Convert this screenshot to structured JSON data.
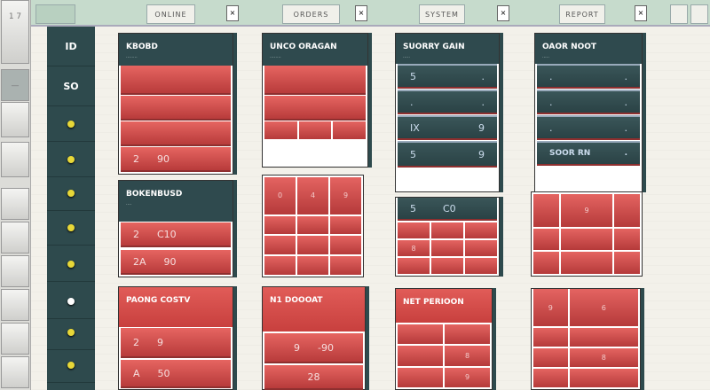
{
  "topbar": {
    "tabs": [
      "ONLINE",
      "ORDERS",
      "SYSTEM",
      "REPORT"
    ]
  },
  "sidebar": {
    "time": "1 7",
    "buttons": [
      "—",
      "",
      "",
      "",
      "",
      "",
      "",
      ""
    ]
  },
  "index_column": {
    "header": "ID",
    "subheader": "SO",
    "dots": [
      "yellow",
      "yellow",
      "yellow",
      "yellow",
      "yellow",
      "white",
      "yellow",
      "yellow"
    ]
  },
  "columns": [
    {
      "header": {
        "title": "KBOBD",
        "subtitle": "........"
      },
      "rows": [
        "",
        "",
        "",
        ""
      ],
      "last_row": [
        "2",
        "90"
      ],
      "panel2": {
        "title": "BOKENBUSD",
        "subtitle": "....",
        "rows": [
          [
            "2",
            "C10"
          ],
          [
            "2A",
            "90"
          ]
        ]
      },
      "panel3": {
        "title": "PAONG COSTV",
        "rows": [
          [
            "2",
            "9"
          ],
          [
            "A",
            "50"
          ]
        ]
      }
    },
    {
      "header": {
        "title": "UNCO ORAGAN",
        "subtitle": "........"
      },
      "panel2": {
        "cells": [
          "0",
          "4",
          "9",
          "",
          "",
          "",
          "",
          "",
          "",
          "",
          "",
          ""
        ]
      },
      "panel3": {
        "title": "N1 DOOOAT",
        "rows": [
          [
            "9",
            "-90"
          ],
          [
            "",
            "28"
          ]
        ]
      }
    },
    {
      "header": {
        "title": "SUORRY GAIN",
        "subtitle": "....."
      },
      "rows": [
        [
          "5",
          "."
        ],
        [
          ".",
          "."
        ],
        [
          "IX",
          "9"
        ],
        [
          "5",
          "9"
        ]
      ],
      "panel2": {
        "head": [
          "5",
          "C0"
        ],
        "cells": [
          "",
          "",
          "",
          "8",
          "",
          "",
          "",
          "",
          ""
        ]
      },
      "panel3": {
        "title": "NET PERIOON",
        "cells": [
          "",
          "",
          "",
          "8",
          "",
          "9"
        ]
      }
    },
    {
      "header": {
        "title": "OAOR NOOT",
        "subtitle": "....."
      },
      "rows": [
        [
          ".",
          "."
        ],
        [
          ".",
          "."
        ],
        [
          ".",
          "."
        ],
        [
          "SOOR RN",
          "."
        ]
      ],
      "panel2": {
        "cells": [
          "",
          "9",
          "",
          "",
          "",
          "",
          "",
          "",
          ""
        ]
      },
      "panel3": {
        "cells": [
          "9",
          "6",
          "",
          "",
          "",
          "8",
          "",
          ""
        ]
      }
    }
  ]
}
